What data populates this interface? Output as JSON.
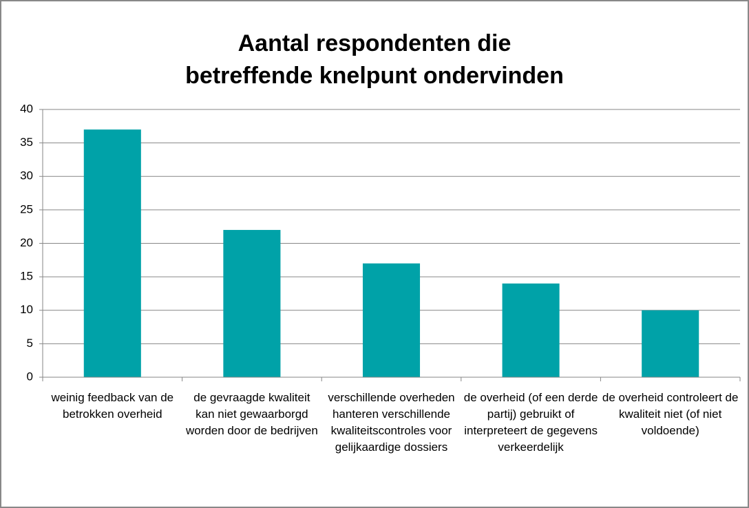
{
  "chart_data": {
    "type": "bar",
    "title": "Aantal respondenten die\nbetreffende knelpunt ondervinden",
    "categories": [
      "weinig feedback van de betrokken overheid",
      "de gevraagde kwaliteit kan niet gewaarborgd worden door de bedrijven",
      "verschillende overheden hanteren verschillende kwaliteitscontroles voor gelijkaardige dossiers",
      "de overheid (of een derde partij) gebruikt of interpreteert de gegevens verkeerdelijk",
      "de overheid controleert de kwaliteit niet (of niet voldoende)"
    ],
    "values": [
      37,
      22,
      17,
      14,
      10
    ],
    "color": "#00a2a8",
    "ylim": [
      0,
      40
    ],
    "yticks": [
      0,
      5,
      10,
      15,
      20,
      25,
      30,
      35,
      40
    ],
    "grid": true
  }
}
